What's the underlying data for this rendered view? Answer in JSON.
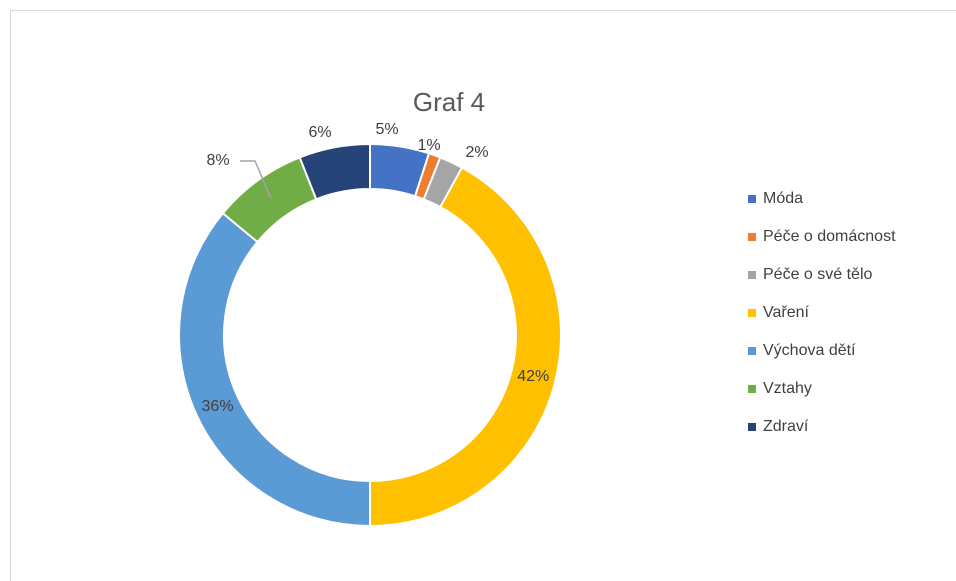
{
  "chart_data": {
    "type": "donut",
    "title": "Graf 4",
    "categories": [
      "Móda",
      "Péče o domácnost",
      "Péče o své tělo",
      "Vaření",
      "Výchova dětí",
      "Vztahy",
      "Zdraví"
    ],
    "values": [
      5,
      1,
      2,
      42,
      36,
      8,
      6
    ],
    "value_labels": [
      "5%",
      "1%",
      "2%",
      "42%",
      "36%",
      "8%",
      "6%"
    ],
    "colors": [
      "#4472c4",
      "#ed7d31",
      "#a5a5a5",
      "#ffc000",
      "#5b9bd5",
      "#70ad47",
      "#264478"
    ],
    "legend": "right"
  }
}
